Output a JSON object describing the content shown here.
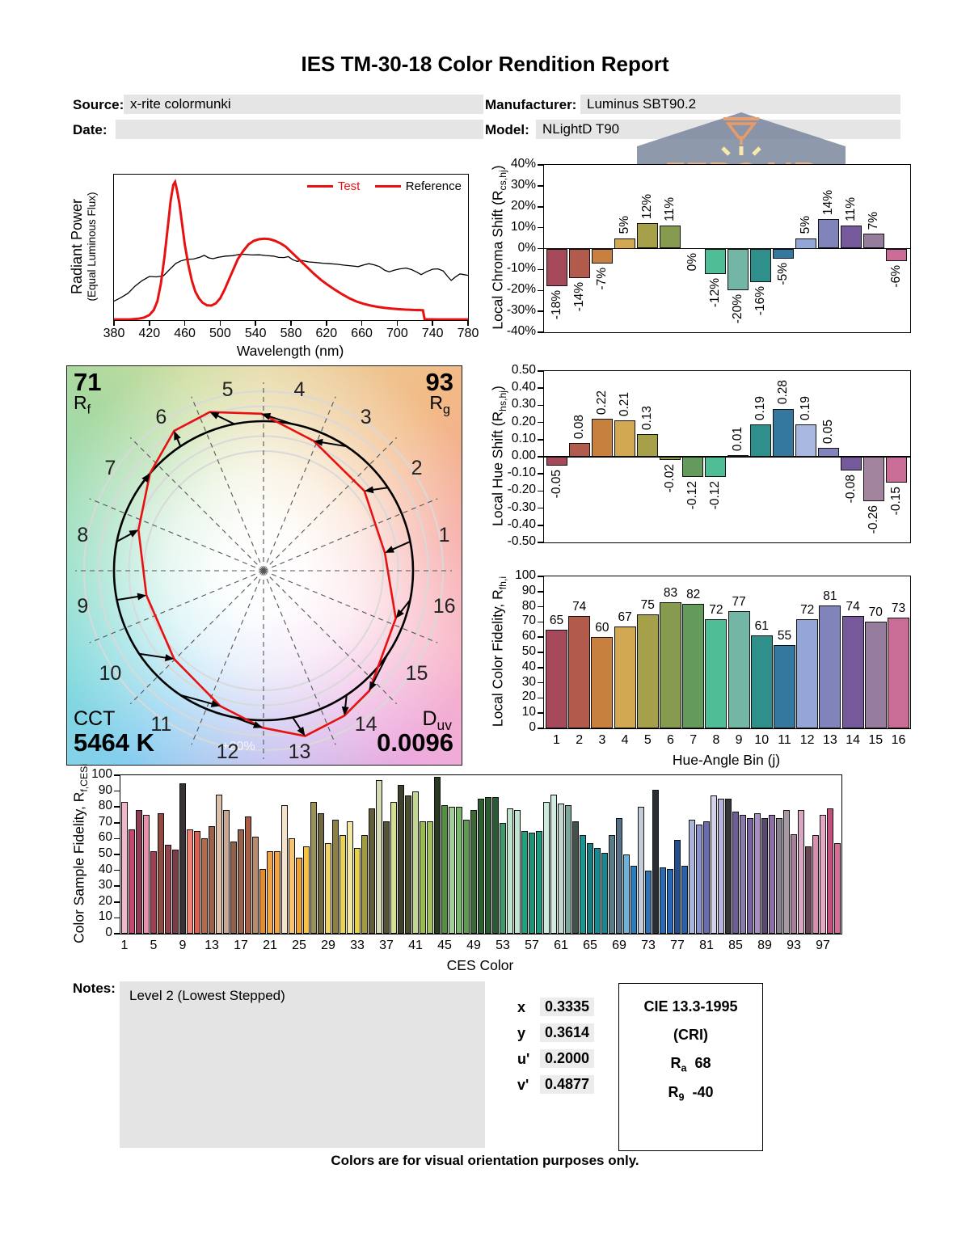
{
  "title": "IES TM-30-18 Color Rendition Report",
  "header": {
    "source_label": "Source:",
    "source_value": "x-rite colormunki",
    "date_label": "Date:",
    "date_value": "",
    "manufacturer_label": "Manufacturer:",
    "manufacturer_value": "Luminus SBT90.2",
    "model_label": "Model:",
    "model_value": "NLightD T90"
  },
  "watermark": {
    "brand": "ZEROAIR",
    "brand_suffix": "ORG"
  },
  "vector_graphic": {
    "rf_value": "71",
    "rf_main": "R",
    "rf_sub": "f",
    "rg_value": "93",
    "rg_main": "R",
    "rg_sub": "g",
    "cct_label": "CCT",
    "cct_value": "5464 K",
    "duv_main": "D",
    "duv_sub": "uv",
    "duv_value": "0.0096",
    "ring_label": "+20%",
    "bins": [
      "1",
      "2",
      "3",
      "4",
      "5",
      "6",
      "7",
      "8",
      "9",
      "10",
      "11",
      "12",
      "13",
      "14",
      "15",
      "16"
    ],
    "reference_color": "#000000",
    "test_color": "#e81111"
  },
  "notes": {
    "label": "Notes:",
    "value": "Level 2 (Lowest Stepped)"
  },
  "chromaticity": {
    "rows": [
      {
        "label": "x",
        "value": "0.3335"
      },
      {
        "label": "y",
        "value": "0.3614"
      },
      {
        "label": "u'",
        "value": "0.2000"
      },
      {
        "label": "v'",
        "value": "0.4877"
      }
    ]
  },
  "cri_box": {
    "line1": "CIE 13.3-1995",
    "line2": "(CRI)",
    "ra_main": "R",
    "ra_sub": "a",
    "ra_value": "68",
    "r9_main": "R",
    "r9_sub": "9",
    "r9_value": "-40"
  },
  "footer": "Colors are for visual orientation purposes only.",
  "chart_data": [
    {
      "type": "line",
      "name": "spectral_power_distribution",
      "xlabel": "Wavelength (nm)",
      "ylabel_line1": "Radiant Power",
      "ylabel_line2": "(Equal Luminous Flux)",
      "xlim": [
        380,
        780
      ],
      "ylim": [
        0,
        1
      ],
      "grid": false,
      "x_ticks": [
        "380",
        "420",
        "460",
        "500",
        "540",
        "580",
        "620",
        "660",
        "700",
        "740",
        "780"
      ],
      "legend_position": "top-right",
      "legend": [
        {
          "label": "Test",
          "swatch_color": "#e81111",
          "label_color": "#e81111"
        },
        {
          "label": "Reference",
          "swatch_color": "#e81111",
          "label_color": "#000000"
        }
      ],
      "series": [
        {
          "name": "Test",
          "color": "#e81111",
          "width": 3,
          "points": [
            [
              380,
              0.005
            ],
            [
              398,
              0.005
            ],
            [
              408,
              0.01
            ],
            [
              414,
              0.018
            ],
            [
              420,
              0.035
            ],
            [
              425,
              0.07
            ],
            [
              429,
              0.13
            ],
            [
              433,
              0.25
            ],
            [
              437,
              0.43
            ],
            [
              441,
              0.65
            ],
            [
              444,
              0.82
            ],
            [
              447,
              0.93
            ],
            [
              449,
              0.95
            ],
            [
              451,
              0.9
            ],
            [
              454,
              0.8
            ],
            [
              457,
              0.66
            ],
            [
              460,
              0.52
            ],
            [
              464,
              0.38
            ],
            [
              468,
              0.27
            ],
            [
              472,
              0.195
            ],
            [
              476,
              0.15
            ],
            [
              480,
              0.12
            ],
            [
              485,
              0.102
            ],
            [
              490,
              0.1
            ],
            [
              495,
              0.115
            ],
            [
              500,
              0.15
            ],
            [
              505,
              0.21
            ],
            [
              510,
              0.28
            ],
            [
              515,
              0.35
            ],
            [
              520,
              0.42
            ],
            [
              526,
              0.475
            ],
            [
              532,
              0.52
            ],
            [
              538,
              0.545
            ],
            [
              544,
              0.556
            ],
            [
              550,
              0.56
            ],
            [
              556,
              0.556
            ],
            [
              562,
              0.545
            ],
            [
              568,
              0.528
            ],
            [
              574,
              0.505
            ],
            [
              580,
              0.47
            ],
            [
              586,
              0.435
            ],
            [
              592,
              0.4
            ],
            [
              598,
              0.365
            ],
            [
              606,
              0.318
            ],
            [
              614,
              0.276
            ],
            [
              622,
              0.24
            ],
            [
              630,
              0.207
            ],
            [
              638,
              0.177
            ],
            [
              646,
              0.15
            ],
            [
              654,
              0.128
            ],
            [
              662,
              0.112
            ],
            [
              670,
              0.1
            ],
            [
              678,
              0.091
            ],
            [
              686,
              0.084
            ],
            [
              694,
              0.079
            ],
            [
              702,
              0.075
            ],
            [
              710,
              0.072
            ],
            [
              718,
              0.07
            ],
            [
              726,
              0.069
            ],
            [
              729,
              0.068
            ],
            [
              731,
              0.006
            ],
            [
              745,
              0.005
            ],
            [
              780,
              0.005
            ]
          ]
        },
        {
          "name": "Reference",
          "color": "#000000",
          "width": 1.3,
          "points": [
            [
              380,
              0.13
            ],
            [
              388,
              0.155
            ],
            [
              396,
              0.185
            ],
            [
              404,
              0.235
            ],
            [
              412,
              0.272
            ],
            [
              420,
              0.3
            ],
            [
              428,
              0.297
            ],
            [
              436,
              0.305
            ],
            [
              444,
              0.355
            ],
            [
              450,
              0.39
            ],
            [
              456,
              0.408
            ],
            [
              462,
              0.417
            ],
            [
              470,
              0.42
            ],
            [
              477,
              0.432
            ],
            [
              482,
              0.445
            ],
            [
              487,
              0.428
            ],
            [
              492,
              0.422
            ],
            [
              498,
              0.432
            ],
            [
              506,
              0.44
            ],
            [
              514,
              0.443
            ],
            [
              522,
              0.452
            ],
            [
              528,
              0.452
            ],
            [
              536,
              0.448
            ],
            [
              544,
              0.449
            ],
            [
              552,
              0.444
            ],
            [
              560,
              0.44
            ],
            [
              566,
              0.431
            ],
            [
              572,
              0.43
            ],
            [
              577,
              0.436
            ],
            [
              582,
              0.415
            ],
            [
              587,
              0.404
            ],
            [
              592,
              0.41
            ],
            [
              600,
              0.4
            ],
            [
              608,
              0.396
            ],
            [
              616,
              0.391
            ],
            [
              624,
              0.388
            ],
            [
              632,
              0.384
            ],
            [
              640,
              0.378
            ],
            [
              648,
              0.373
            ],
            [
              656,
              0.368
            ],
            [
              662,
              0.379
            ],
            [
              668,
              0.388
            ],
            [
              674,
              0.38
            ],
            [
              680,
              0.368
            ],
            [
              686,
              0.342
            ],
            [
              691,
              0.332
            ],
            [
              697,
              0.344
            ],
            [
              703,
              0.352
            ],
            [
              710,
              0.358
            ],
            [
              716,
              0.348
            ],
            [
              722,
              0.33
            ],
            [
              727,
              0.313
            ],
            [
              733,
              0.332
            ],
            [
              740,
              0.35
            ],
            [
              746,
              0.352
            ],
            [
              752,
              0.338
            ],
            [
              757,
              0.3
            ],
            [
              761,
              0.273
            ],
            [
              766,
              0.298
            ],
            [
              771,
              0.318
            ],
            [
              776,
              0.312
            ],
            [
              780,
              0.308
            ]
          ]
        }
      ]
    },
    {
      "type": "bar",
      "name": "local_chroma_shift",
      "ylabel_pre": "Local Chroma Shift (R",
      "ylabel_sub": "cs,hj",
      "ylabel_post": ")",
      "ylim": [
        -40,
        40
      ],
      "y_ticks": [
        "40%",
        "30%",
        "20%",
        "10%",
        "0%",
        "-10%",
        "-20%",
        "-30%",
        "-40%"
      ],
      "values": [
        -18,
        -14,
        -7,
        5,
        12,
        11,
        0,
        -12,
        -20,
        -16,
        -5,
        5,
        14,
        11,
        7,
        -6
      ],
      "labels": [
        "-18%",
        "-14%",
        "-7%",
        "5%",
        "12%",
        "11%",
        "0%",
        "-12%",
        "-20%",
        "-16%",
        "-5%",
        "5%",
        "14%",
        "11%",
        "7%",
        "-6%"
      ],
      "label_style": "v",
      "colors": [
        "#a5495b",
        "#b25a4c",
        "#c8803f",
        "#d2a852",
        "#a6a04b",
        "#879b50",
        "#649b5d",
        "#4fbd95",
        "#74b6a6",
        "#2f8f8b",
        "#35789f",
        "#94a6d6",
        "#8184ba",
        "#75599b",
        "#967d9d",
        "#ca6d96"
      ]
    },
    {
      "type": "bar",
      "name": "local_hue_shift",
      "ylabel_pre": "Local Hue Shift (R",
      "ylabel_sub": "hs,hj",
      "ylabel_post": ")",
      "ylim": [
        -0.5,
        0.5
      ],
      "y_ticks": [
        "0.50",
        "0.40",
        "0.30",
        "0.20",
        "0.10",
        "0.00",
        "-0.10",
        "-0.20",
        "-0.30",
        "-0.40",
        "-0.50"
      ],
      "values": [
        -0.05,
        0.08,
        0.22,
        0.21,
        0.13,
        -0.02,
        -0.12,
        -0.12,
        0.01,
        0.19,
        0.28,
        0.19,
        0.05,
        -0.08,
        -0.26,
        -0.15
      ],
      "labels": [
        "-0.05",
        "0.08",
        "0.22",
        "0.21",
        "0.13",
        "-0.02",
        "-0.12",
        "-0.12",
        "0.01",
        "0.19",
        "0.28",
        "0.19",
        "0.05",
        "-0.08",
        "-0.26",
        "-0.15"
      ],
      "label_style": "v",
      "colors": [
        "#a5495b",
        "#b25a4c",
        "#c8803f",
        "#d2a852",
        "#a6a04b",
        "#8aa04e",
        "#649b5d",
        "#4fbd95",
        "#9fd8c8",
        "#2f8f8b",
        "#35789f",
        "#a9b8e0",
        "#8184ba",
        "#75599b",
        "#a3849e",
        "#ca6d96"
      ]
    },
    {
      "type": "bar",
      "name": "local_color_fidelity",
      "ylabel_pre": "Local Color Fidelity, R",
      "ylabel_sub": "fh,i",
      "ylabel_post": "",
      "xlabel": "Hue-Angle Bin (j)",
      "ylim": [
        0,
        100
      ],
      "y_ticks": [
        "100",
        "90",
        "80",
        "70",
        "60",
        "50",
        "40",
        "30",
        "20",
        "10",
        "0"
      ],
      "values": [
        65,
        74,
        60,
        67,
        75,
        83,
        82,
        72,
        77,
        61,
        55,
        72,
        81,
        74,
        70,
        73
      ],
      "labels": [
        "65",
        "74",
        "60",
        "67",
        "75",
        "83",
        "82",
        "72",
        "77",
        "61",
        "55",
        "72",
        "81",
        "74",
        "70",
        "73"
      ],
      "label_style": "h",
      "categories": [
        "1",
        "2",
        "3",
        "4",
        "5",
        "6",
        "7",
        "8",
        "9",
        "10",
        "11",
        "12",
        "13",
        "14",
        "15",
        "16"
      ],
      "colors": [
        "#a5495b",
        "#b25a4c",
        "#c8803f",
        "#d2a852",
        "#a6a04b",
        "#879b50",
        "#649b5d",
        "#4fbd95",
        "#74b6a6",
        "#2f8f8b",
        "#35789f",
        "#94a6d6",
        "#8184ba",
        "#75599b",
        "#967d9d",
        "#ca6d96"
      ]
    },
    {
      "type": "bar",
      "name": "color_sample_fidelity",
      "ylabel_pre": "Color Sample Fidelity, R",
      "ylabel_sub": "f,CESi",
      "ylabel_post": "",
      "xlabel": "CES Color",
      "ylim": [
        0,
        100
      ],
      "y_ticks": [
        "100",
        "90",
        "80",
        "70",
        "60",
        "50",
        "40",
        "30",
        "20",
        "10",
        "0"
      ],
      "x_ticks": [
        "1",
        "5",
        "9",
        "13",
        "17",
        "21",
        "25",
        "29",
        "33",
        "37",
        "41",
        "45",
        "49",
        "53",
        "57",
        "61",
        "65",
        "69",
        "73",
        "77",
        "81",
        "85",
        "89",
        "93",
        "97"
      ],
      "values": [
        83,
        66,
        78,
        75,
        52,
        76,
        56,
        53,
        95,
        66,
        65,
        60,
        68,
        88,
        78,
        58,
        66,
        74,
        61,
        41,
        52,
        52,
        81,
        60,
        48,
        55,
        83,
        76,
        57,
        72,
        62,
        71,
        54,
        62,
        79,
        97,
        71,
        83,
        94,
        87,
        90,
        71,
        71,
        99,
        81,
        80,
        80,
        72,
        78,
        85,
        86,
        86,
        70,
        79,
        78,
        65,
        64,
        65,
        83,
        88,
        82,
        81,
        71,
        62,
        57,
        54,
        51,
        62,
        73,
        50,
        43,
        80,
        40,
        91,
        42,
        41,
        59,
        43,
        72,
        69,
        71,
        87,
        85,
        85,
        77,
        75,
        73,
        76,
        73,
        75,
        73,
        78,
        63,
        78,
        55,
        62,
        75,
        79,
        57
      ],
      "colors": [
        "#f2b6c9",
        "#c24a6e",
        "#8f3c55",
        "#e591aa",
        "#a63b52",
        "#8f4a42",
        "#97424d",
        "#7d3b47",
        "#3a3336",
        "#f08173",
        "#dc6050",
        "#b16b4b",
        "#9c6147",
        "#dbc0aa",
        "#caa694",
        "#906049",
        "#97614a",
        "#a85d45",
        "#b78c6c",
        "#e28b33",
        "#f2a243",
        "#efa347",
        "#f4e3c9",
        "#f6c273",
        "#f1a232",
        "#f6c247",
        "#9c9156",
        "#6f6742",
        "#f1d161",
        "#8b8147",
        "#e9d151",
        "#f1e9a1",
        "#e6d147",
        "#a19b42",
        "#605d37",
        "#d6d9b6",
        "#565433",
        "#d7df95",
        "#3e412b",
        "#494e2f",
        "#c2d88e",
        "#99b953",
        "#9fc157",
        "#2b3a23",
        "#52923e",
        "#a3ce99",
        "#79b769",
        "#5e9b4f",
        "#3b6a34",
        "#2e5d30",
        "#2c5b32",
        "#2a5935",
        "#3e996d",
        "#bee2cc",
        "#c1e4d1",
        "#25a07d",
        "#1e9577",
        "#22997f",
        "#cce9dd",
        "#d1ebe1",
        "#c2d7cc",
        "#7ea79b",
        "#44504d",
        "#1e938f",
        "#167c7f",
        "#1a8991",
        "#198694",
        "#597c89",
        "#567187",
        "#6eb2d7",
        "#297ebf",
        "#c2cbd7",
        "#2e73b7",
        "#2a2e34",
        "#296bb4",
        "#2866b1",
        "#234f8e",
        "#2961a7",
        "#a9b3dc",
        "#8992cb",
        "#696bb4",
        "#d1d1e7",
        "#b7b3dc",
        "#36333b",
        "#6e5c9d",
        "#897aa7",
        "#7a619f",
        "#a78fc1",
        "#5c4971",
        "#8e6ea4",
        "#89808f",
        "#a799a4",
        "#a77f99",
        "#d7a7c1",
        "#6d4356",
        "#d78faf",
        "#e7a7c4",
        "#c1507d",
        "#d76d95"
      ]
    }
  ]
}
